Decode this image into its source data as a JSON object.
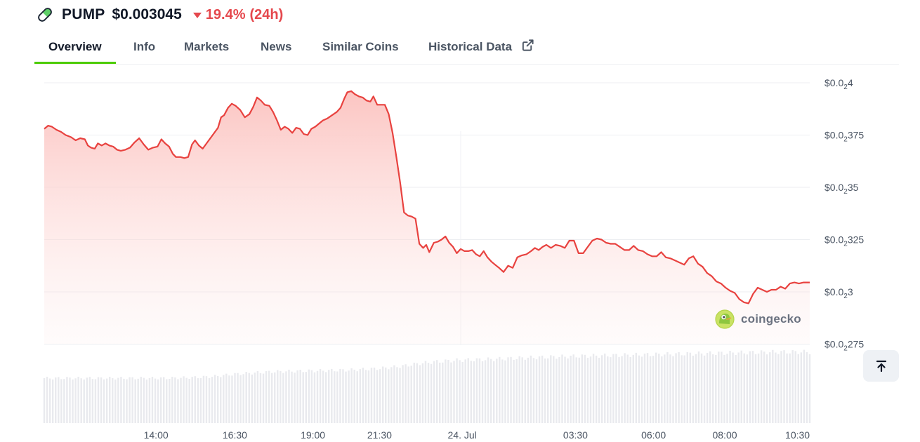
{
  "coin": {
    "symbol": "PUMP",
    "price": "$0.003045",
    "change_pct": "19.4%",
    "change_period": "(24h)",
    "change_direction": "down",
    "icon": "pill-icon"
  },
  "colors": {
    "line": "#e8423f",
    "fill_top": "#fcc9c6",
    "down": "#e5484d",
    "tab_active": "#4bcc00",
    "volume": "#e9eaee"
  },
  "tabs": [
    {
      "label": "Overview",
      "active": true
    },
    {
      "label": "Info",
      "active": false
    },
    {
      "label": "Markets",
      "active": false
    },
    {
      "label": "News",
      "active": false
    },
    {
      "label": "Similar Coins",
      "active": false
    },
    {
      "label": "Historical Data",
      "active": false,
      "icon": "external-link-icon"
    }
  ],
  "watermark": {
    "text": "coingecko",
    "icon": "coingecko-logo-icon"
  },
  "scroll_top_icon": "arrow-up-to-line-icon",
  "chart_data": {
    "type": "area",
    "y_axis": {
      "position": "right",
      "ylim": [
        0.0027,
        0.00405
      ],
      "ticks": [
        {
          "value": 0.004,
          "prefix": "$0.0",
          "sub": "2",
          "suffix": "4"
        },
        {
          "value": 0.00375,
          "prefix": "$0.0",
          "sub": "2",
          "suffix": "375"
        },
        {
          "value": 0.0035,
          "prefix": "$0.0",
          "sub": "2",
          "suffix": "35"
        },
        {
          "value": 0.00325,
          "prefix": "$0.0",
          "sub": "2",
          "suffix": "325"
        },
        {
          "value": 0.003,
          "prefix": "$0.0",
          "sub": "2",
          "suffix": "3"
        },
        {
          "value": 0.00275,
          "prefix": "$0.0",
          "sub": "2",
          "suffix": "275"
        }
      ]
    },
    "x_axis": {
      "xlim": [
        0,
        1
      ],
      "ticks": [
        {
          "label": "14:00",
          "value": 0.146
        },
        {
          "label": "16:30",
          "value": 0.249
        },
        {
          "label": "19:00",
          "value": 0.351
        },
        {
          "label": "21:30",
          "value": 0.438
        },
        {
          "label": "24. Jul",
          "value": 0.546
        },
        {
          "label": "03:30",
          "value": 0.694
        },
        {
          "label": "06:00",
          "value": 0.796
        },
        {
          "label": "08:00",
          "value": 0.889
        },
        {
          "label": "10:30",
          "value": 0.984
        }
      ]
    },
    "grid": true,
    "price_series": [
      [
        0.0,
        0.00378
      ],
      [
        0.005,
        0.003795
      ],
      [
        0.01,
        0.00379
      ],
      [
        0.016,
        0.003775
      ],
      [
        0.022,
        0.003765
      ],
      [
        0.028,
        0.00375
      ],
      [
        0.035,
        0.00374
      ],
      [
        0.041,
        0.003725
      ],
      [
        0.047,
        0.003735
      ],
      [
        0.053,
        0.00373
      ],
      [
        0.057,
        0.0037
      ],
      [
        0.061,
        0.00369
      ],
      [
        0.066,
        0.003685
      ],
      [
        0.07,
        0.00371
      ],
      [
        0.075,
        0.0037
      ],
      [
        0.08,
        0.00371
      ],
      [
        0.085,
        0.0037
      ],
      [
        0.09,
        0.003695
      ],
      [
        0.095,
        0.00368
      ],
      [
        0.1,
        0.003675
      ],
      [
        0.106,
        0.00368
      ],
      [
        0.112,
        0.00369
      ],
      [
        0.118,
        0.003715
      ],
      [
        0.124,
        0.003735
      ],
      [
        0.13,
        0.003705
      ],
      [
        0.136,
        0.00368
      ],
      [
        0.142,
        0.00369
      ],
      [
        0.148,
        0.003695
      ],
      [
        0.153,
        0.00373
      ],
      [
        0.158,
        0.00371
      ],
      [
        0.163,
        0.003695
      ],
      [
        0.168,
        0.00366
      ],
      [
        0.172,
        0.003645
      ],
      [
        0.178,
        0.003645
      ],
      [
        0.183,
        0.00364
      ],
      [
        0.188,
        0.003645
      ],
      [
        0.193,
        0.003705
      ],
      [
        0.197,
        0.003725
      ],
      [
        0.202,
        0.0037
      ],
      [
        0.207,
        0.003685
      ],
      [
        0.212,
        0.00371
      ],
      [
        0.218,
        0.00374
      ],
      [
        0.223,
        0.003765
      ],
      [
        0.227,
        0.003785
      ],
      [
        0.231,
        0.003835
      ],
      [
        0.235,
        0.003845
      ],
      [
        0.24,
        0.00388
      ],
      [
        0.245,
        0.0039
      ],
      [
        0.25,
        0.00389
      ],
      [
        0.256,
        0.00387
      ],
      [
        0.262,
        0.003835
      ],
      [
        0.268,
        0.00385
      ],
      [
        0.273,
        0.003885
      ],
      [
        0.278,
        0.00393
      ],
      [
        0.283,
        0.003915
      ],
      [
        0.288,
        0.003895
      ],
      [
        0.294,
        0.00389
      ],
      [
        0.299,
        0.00386
      ],
      [
        0.304,
        0.00382
      ],
      [
        0.309,
        0.003775
      ],
      [
        0.314,
        0.00379
      ],
      [
        0.319,
        0.00378
      ],
      [
        0.324,
        0.00376
      ],
      [
        0.329,
        0.003785
      ],
      [
        0.334,
        0.00378
      ],
      [
        0.339,
        0.003755
      ],
      [
        0.344,
        0.00375
      ],
      [
        0.349,
        0.00378
      ],
      [
        0.354,
        0.00379
      ],
      [
        0.359,
        0.003805
      ],
      [
        0.364,
        0.00382
      ],
      [
        0.37,
        0.00383
      ],
      [
        0.376,
        0.003845
      ],
      [
        0.382,
        0.00386
      ],
      [
        0.387,
        0.00388
      ],
      [
        0.392,
        0.003925
      ],
      [
        0.396,
        0.003955
      ],
      [
        0.401,
        0.00396
      ],
      [
        0.406,
        0.003945
      ],
      [
        0.411,
        0.003935
      ],
      [
        0.416,
        0.00393
      ],
      [
        0.421,
        0.003915
      ],
      [
        0.426,
        0.00391
      ],
      [
        0.43,
        0.003935
      ],
      [
        0.435,
        0.003895
      ],
      [
        0.44,
        0.003895
      ],
      [
        0.445,
        0.003895
      ],
      [
        0.45,
        0.00385
      ],
      [
        0.455,
        0.00376
      ],
      [
        0.46,
        0.003645
      ],
      [
        0.465,
        0.00352
      ],
      [
        0.47,
        0.00338
      ],
      [
        0.475,
        0.003365
      ],
      [
        0.48,
        0.00336
      ],
      [
        0.485,
        0.00335
      ],
      [
        0.49,
        0.00323
      ],
      [
        0.495,
        0.00321
      ],
      [
        0.499,
        0.003225
      ],
      [
        0.503,
        0.00319
      ],
      [
        0.509,
        0.003235
      ],
      [
        0.514,
        0.00324
      ],
      [
        0.519,
        0.00325
      ],
      [
        0.524,
        0.003265
      ],
      [
        0.529,
        0.003235
      ],
      [
        0.534,
        0.003215
      ],
      [
        0.539,
        0.003185
      ],
      [
        0.544,
        0.003205
      ],
      [
        0.549,
        0.003195
      ],
      [
        0.554,
        0.003195
      ],
      [
        0.559,
        0.0032
      ],
      [
        0.564,
        0.00318
      ],
      [
        0.569,
        0.00317
      ],
      [
        0.574,
        0.003195
      ],
      [
        0.579,
        0.003165
      ],
      [
        0.584,
        0.003145
      ],
      [
        0.589,
        0.00313
      ],
      [
        0.594,
        0.003115
      ],
      [
        0.6,
        0.003095
      ],
      [
        0.606,
        0.003125
      ],
      [
        0.612,
        0.003115
      ],
      [
        0.618,
        0.003165
      ],
      [
        0.624,
        0.003175
      ],
      [
        0.63,
        0.00318
      ],
      [
        0.636,
        0.003195
      ],
      [
        0.641,
        0.00321
      ],
      [
        0.646,
        0.0032
      ],
      [
        0.651,
        0.003215
      ],
      [
        0.656,
        0.003225
      ],
      [
        0.662,
        0.00321
      ],
      [
        0.668,
        0.003225
      ],
      [
        0.674,
        0.00322
      ],
      [
        0.68,
        0.00321
      ],
      [
        0.686,
        0.003245
      ],
      [
        0.692,
        0.003245
      ],
      [
        0.698,
        0.003185
      ],
      [
        0.704,
        0.003185
      ],
      [
        0.71,
        0.003215
      ],
      [
        0.716,
        0.003245
      ],
      [
        0.722,
        0.003255
      ],
      [
        0.728,
        0.00325
      ],
      [
        0.734,
        0.003235
      ],
      [
        0.74,
        0.00323
      ],
      [
        0.746,
        0.00323
      ],
      [
        0.752,
        0.003215
      ],
      [
        0.758,
        0.0032
      ],
      [
        0.764,
        0.0032
      ],
      [
        0.77,
        0.00322
      ],
      [
        0.776,
        0.0032
      ],
      [
        0.782,
        0.003195
      ],
      [
        0.788,
        0.00318
      ],
      [
        0.794,
        0.00317
      ],
      [
        0.8,
        0.00317
      ],
      [
        0.806,
        0.00319
      ],
      [
        0.812,
        0.003165
      ],
      [
        0.818,
        0.00316
      ],
      [
        0.824,
        0.00315
      ],
      [
        0.83,
        0.00314
      ],
      [
        0.836,
        0.00313
      ],
      [
        0.842,
        0.00316
      ],
      [
        0.848,
        0.00317
      ],
      [
        0.854,
        0.003135
      ],
      [
        0.86,
        0.00312
      ],
      [
        0.866,
        0.00309
      ],
      [
        0.872,
        0.003075
      ],
      [
        0.878,
        0.00305
      ],
      [
        0.884,
        0.00304
      ],
      [
        0.89,
        0.00302
      ],
      [
        0.896,
        0.003005
      ],
      [
        0.902,
        0.002995
      ],
      [
        0.908,
        0.002965
      ],
      [
        0.914,
        0.00295
      ],
      [
        0.92,
        0.002945
      ],
      [
        0.926,
        0.00299
      ],
      [
        0.932,
        0.00302
      ],
      [
        0.938,
        0.00301
      ],
      [
        0.944,
        0.003
      ],
      [
        0.95,
        0.00301
      ],
      [
        0.956,
        0.00301
      ],
      [
        0.962,
        0.003025
      ],
      [
        0.968,
        0.003015
      ],
      [
        0.974,
        0.00304
      ],
      [
        0.98,
        0.003045
      ],
      [
        0.986,
        0.00304
      ],
      [
        0.992,
        0.003045
      ],
      [
        0.998,
        0.003045
      ],
      [
        1.0,
        0.003045
      ]
    ],
    "volume_series": [
      [
        0.0,
        0.55
      ],
      [
        0.08,
        0.55
      ],
      [
        0.16,
        0.55
      ],
      [
        0.2,
        0.56
      ],
      [
        0.22,
        0.57
      ],
      [
        0.25,
        0.6
      ],
      [
        0.3,
        0.63
      ],
      [
        0.35,
        0.64
      ],
      [
        0.4,
        0.65
      ],
      [
        0.44,
        0.67
      ],
      [
        0.47,
        0.7
      ],
      [
        0.49,
        0.73
      ],
      [
        0.51,
        0.75
      ],
      [
        0.54,
        0.77
      ],
      [
        0.58,
        0.78
      ],
      [
        0.63,
        0.8
      ],
      [
        0.7,
        0.82
      ],
      [
        0.8,
        0.84
      ],
      [
        0.9,
        0.86
      ],
      [
        0.96,
        0.87
      ],
      [
        1.0,
        0.87
      ]
    ]
  }
}
